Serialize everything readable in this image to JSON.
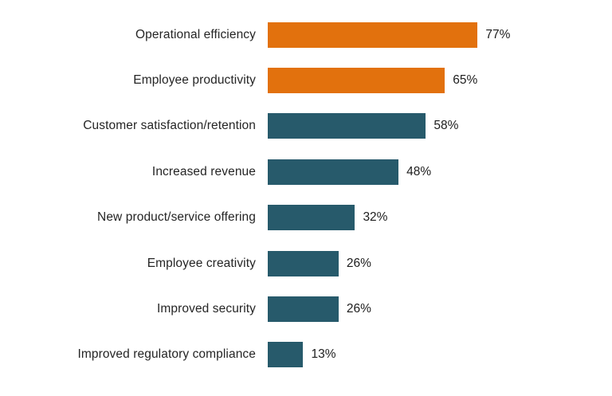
{
  "chart_data": {
    "type": "bar",
    "orientation": "horizontal",
    "title": "",
    "xlabel": "",
    "ylabel": "",
    "xlim": [
      0,
      100
    ],
    "grid": false,
    "legend": null,
    "axes_visible": false,
    "categories": [
      "Operational efficiency",
      "Employee productivity",
      "Customer satisfaction/retention",
      "Increased revenue",
      "New product/service offering",
      "Employee creativity",
      "Improved security",
      "Improved regulatory compliance"
    ],
    "values": [
      77,
      65,
      58,
      48,
      32,
      26,
      26,
      13
    ],
    "value_labels": [
      "77%",
      "65%",
      "58%",
      "48%",
      "32%",
      "26%",
      "26%",
      "13%"
    ],
    "bar_colors": [
      "#E2710D",
      "#E2710D",
      "#275A6B",
      "#275A6B",
      "#275A6B",
      "#275A6B",
      "#275A6B",
      "#275A6B"
    ],
    "highlight_color": "#E2710D",
    "base_color": "#275A6B",
    "label_color": "#252525",
    "background_color": "#FFFFFF"
  }
}
